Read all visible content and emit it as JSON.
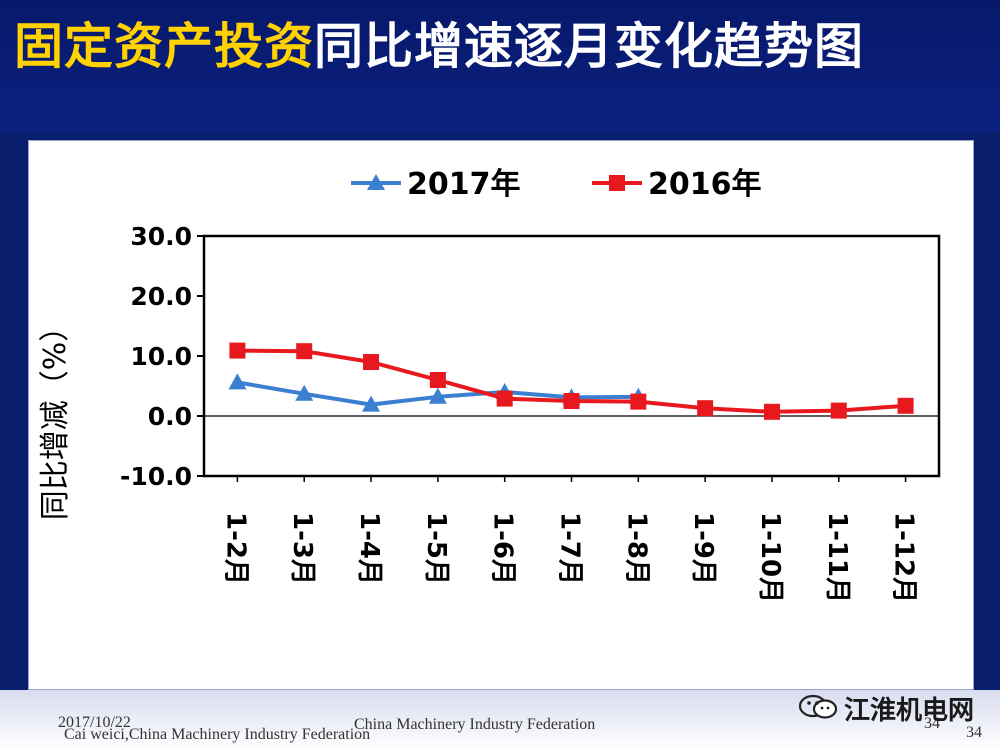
{
  "slide": {
    "title_highlight": "固定资产投资",
    "title_rest": "同比增速逐月变化趋势图",
    "footer_date": "2017/10/22",
    "footer_author": "Cai weici,China Machinery Industry Federation",
    "footer_org": "China Machinery Industry Federation",
    "page_number": "34",
    "page_number_corner": "34",
    "watermark": "江淮机电网"
  },
  "chart_data": {
    "type": "line",
    "title": "",
    "ylabel": "同比增减（%）",
    "xlabel": "",
    "categories": [
      "1-2月",
      "1-3月",
      "1-4月",
      "1-5月",
      "1-6月",
      "1-7月",
      "1-8月",
      "1-9月",
      "1-10月",
      "1-11月",
      "1-12月"
    ],
    "ylim": [
      -10,
      30
    ],
    "yticks": [
      "30.0",
      "20.0",
      "10.0",
      "0.0",
      "-10.0"
    ],
    "legend_position": "top",
    "grid": false,
    "series": [
      {
        "name": "2017年",
        "color": "#3a7fd0",
        "marker": "triangle",
        "values": [
          5.6,
          3.7,
          1.9,
          3.2,
          4.0,
          3.1,
          3.2,
          null,
          null,
          null,
          null
        ]
      },
      {
        "name": "2016年",
        "color": "#e8191e",
        "marker": "square",
        "values": [
          10.9,
          10.8,
          9.0,
          6.0,
          2.9,
          2.5,
          2.4,
          1.3,
          0.7,
          0.9,
          1.7
        ]
      }
    ]
  }
}
